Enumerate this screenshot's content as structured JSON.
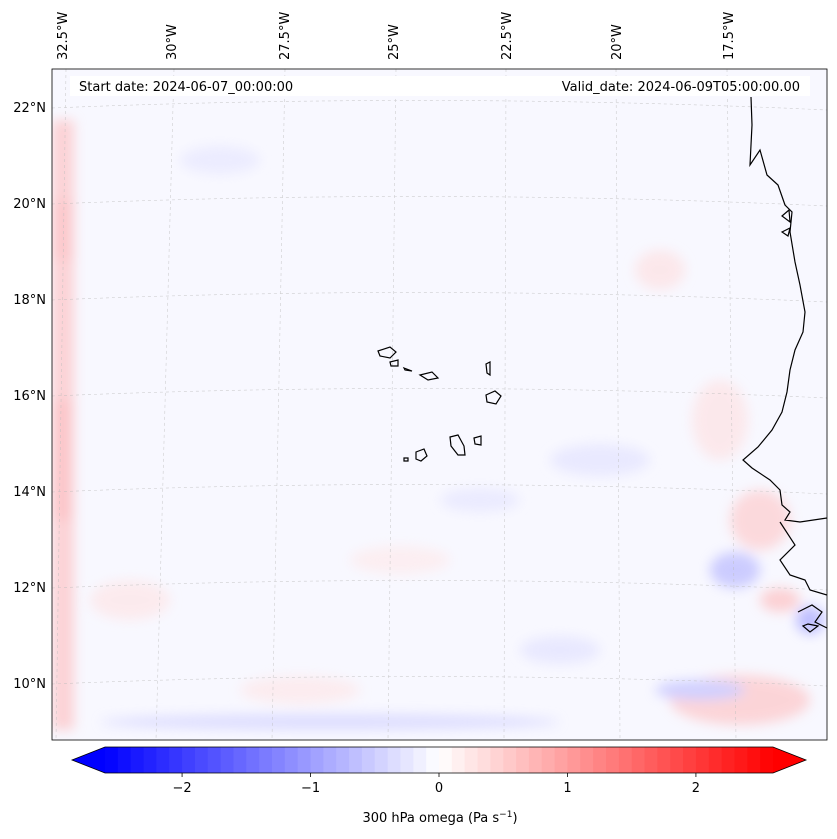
{
  "map": {
    "start_date": "Start date: 2024-06-07_00:00:00",
    "valid_date": "Valid_date: 2024-06-09T05:00:00.00",
    "lon_labels": [
      "32.5°W",
      "30°W",
      "27.5°W",
      "25°W",
      "22.5°W",
      "20°W",
      "17.5°W"
    ],
    "lat_labels": [
      "22°N",
      "20°N",
      "18°N",
      "16°N",
      "14°N",
      "12°N",
      "10°N"
    ],
    "field_colors": {
      "neutral": "#f8f8ff",
      "positive": "#ff0000",
      "negative": "#0000ff"
    }
  },
  "colorbar": {
    "label": "300 hPa omega (Pa s",
    "label_sup": "−1",
    "label_end": ")",
    "range": [
      -2.6,
      2.6
    ],
    "ticks": [
      {
        "value": -2,
        "label": "−2"
      },
      {
        "value": -1,
        "label": "−1"
      },
      {
        "value": 0,
        "label": "0"
      },
      {
        "value": 1,
        "label": "1"
      },
      {
        "value": 2,
        "label": "2"
      }
    ]
  }
}
